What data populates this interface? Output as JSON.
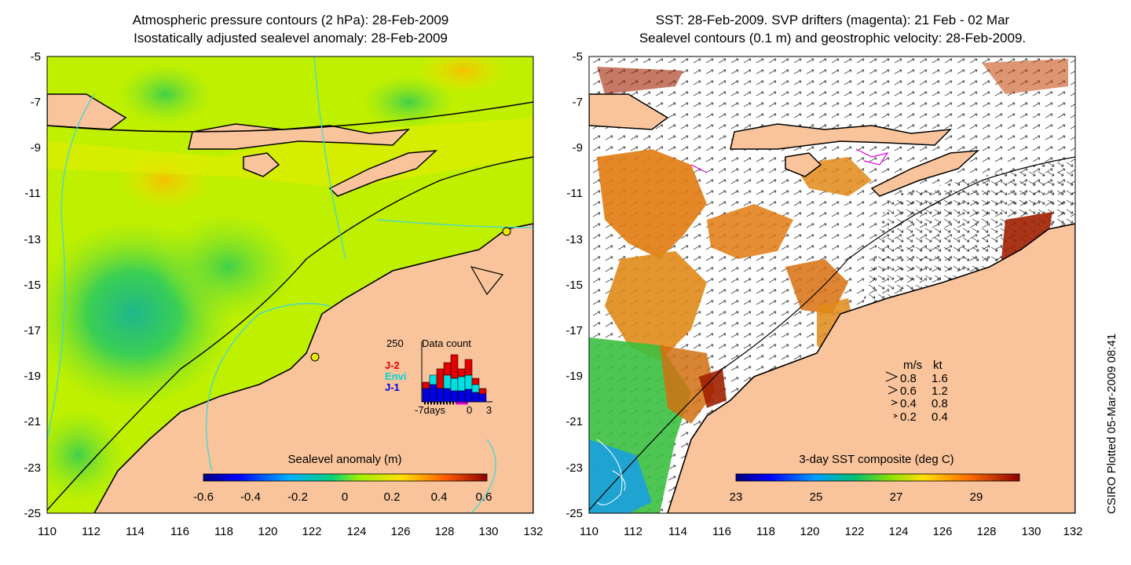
{
  "left_panel": {
    "title_line1": "Atmospheric pressure contours (2 hPa): 28-Feb-2009",
    "title_line2": "Isostatically adjusted sealevel anomaly: 28-Feb-2009",
    "x_ticks": [
      "110",
      "112",
      "114",
      "116",
      "118",
      "120",
      "122",
      "124",
      "126",
      "128",
      "130",
      "132"
    ],
    "y_ticks": [
      "-5",
      "-7",
      "-9",
      "-11",
      "-13",
      "-15",
      "-17",
      "-19",
      "-21",
      "-23",
      "-25"
    ],
    "colorbar": {
      "title": "Sealevel anomaly (m)",
      "ticks": [
        "-0.6",
        "-0.4",
        "-0.2",
        "0",
        "0.2",
        "0.4",
        "0.6"
      ]
    },
    "data_count": {
      "label_max": "250",
      "title": "Data count",
      "legend": [
        {
          "name": "J-2",
          "color": "#e00000"
        },
        {
          "name": "Envi",
          "color": "#00e0e0"
        },
        {
          "name": "J-1",
          "color": "#0000e0"
        }
      ],
      "x_ticks": [
        "-7days",
        "0",
        "3"
      ]
    }
  },
  "right_panel": {
    "title_line1": "SST: 28-Feb-2009. SVP drifters (magenta): 21 Feb - 02 Mar",
    "title_line2": "Sealevel contours (0.1 m) and geostrophic velocity: 28-Feb-2009.",
    "x_ticks": [
      "110",
      "112",
      "114",
      "116",
      "118",
      "120",
      "122",
      "124",
      "126",
      "128",
      "130",
      "132"
    ],
    "y_ticks": [
      "-5",
      "-7",
      "-9",
      "-11",
      "-13",
      "-15",
      "-17",
      "-19",
      "-21",
      "-23",
      "-25"
    ],
    "colorbar": {
      "title": "3-day SST composite (deg C)",
      "ticks": [
        "23",
        "25",
        "27",
        "29"
      ]
    },
    "velocity_legend": {
      "header_ms": "m/s",
      "header_kt": "kt",
      "rows": [
        {
          "ms": "0.8",
          "kt": "1.6"
        },
        {
          "ms": "0.6",
          "kt": "1.2"
        },
        {
          "ms": "0.4",
          "kt": "0.8"
        },
        {
          "ms": "0.2",
          "kt": "0.4"
        }
      ]
    }
  },
  "credit": "CSIRO Plotted 05-Mar-2009 08:41",
  "colors": {
    "land": "#f9c49b",
    "coast": "#000000",
    "contour": "#3fd8d8",
    "sla_bg": "#b8f000"
  }
}
